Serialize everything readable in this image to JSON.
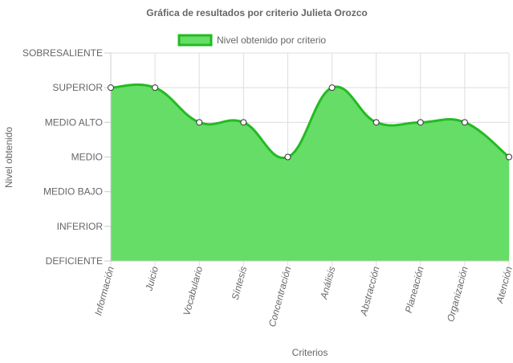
{
  "chart_data": {
    "type": "area",
    "title": "Gráfica de resultados por criterio Julieta Orozco",
    "xlabel": "Criterios",
    "ylabel": "Nivel obtenido",
    "y_levels": [
      "DEFICIENTE",
      "INFERIOR",
      "MEDIO BAJO",
      "MEDIO",
      "MEDIO ALTO",
      "SUPERIOR",
      "SOBRESALIENTE"
    ],
    "ylim": [
      0,
      6
    ],
    "categories": [
      "Información",
      "Juicio",
      "Vocabulario",
      "Síntesis",
      "Concentración",
      "Análisis",
      "Abstracción",
      "Planeación",
      "Organización",
      "Atención"
    ],
    "series": [
      {
        "name": "Nivel obtenido por criterio",
        "values": [
          5,
          5,
          4,
          4,
          3,
          5,
          4,
          4,
          4,
          3
        ],
        "fill_color": "#66dd66",
        "line_color": "#22bb22"
      }
    ],
    "legend_position": "top",
    "grid": true
  }
}
